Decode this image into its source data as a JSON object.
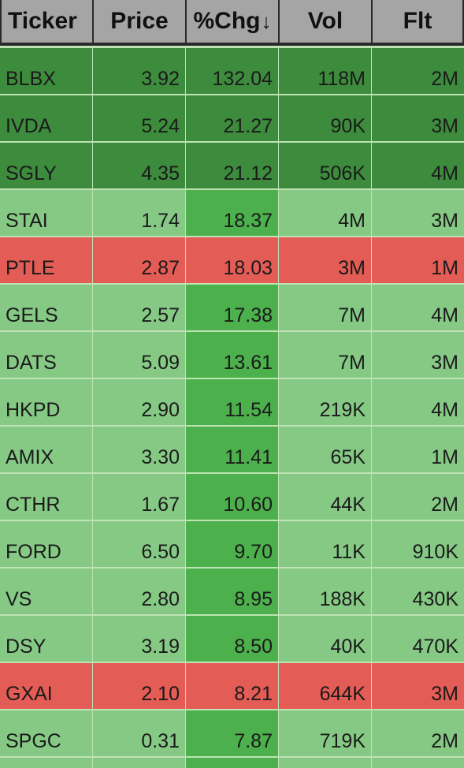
{
  "columns": [
    "Ticker",
    "Price",
    "%Chg",
    "Vol",
    "Flt"
  ],
  "sort_indicator": "↓",
  "colors": {
    "header_bg": "#a5a5a5",
    "dark_green": "#3d8b3d",
    "light_green": "#86c985",
    "mid_green": "#4cb04c",
    "red": "#e35c56",
    "separator": "#bfe3b4"
  },
  "rows": [
    {
      "ticker": "BLBX",
      "price": "3.92",
      "chg": "132.04",
      "vol": "118M",
      "flt": "2M",
      "style": "dark"
    },
    {
      "ticker": "IVDA",
      "price": "5.24",
      "chg": "21.27",
      "vol": "90K",
      "flt": "3M",
      "style": "dark"
    },
    {
      "ticker": "SGLY",
      "price": "4.35",
      "chg": "21.12",
      "vol": "506K",
      "flt": "4M",
      "style": "dark"
    },
    {
      "ticker": "STAI",
      "price": "1.74",
      "chg": "18.37",
      "vol": "4M",
      "flt": "3M",
      "style": "light"
    },
    {
      "ticker": "PTLE",
      "price": "2.87",
      "chg": "18.03",
      "vol": "3M",
      "flt": "1M",
      "style": "red"
    },
    {
      "ticker": "GELS",
      "price": "2.57",
      "chg": "17.38",
      "vol": "7M",
      "flt": "4M",
      "style": "light"
    },
    {
      "ticker": "DATS",
      "price": "5.09",
      "chg": "13.61",
      "vol": "7M",
      "flt": "3M",
      "style": "light"
    },
    {
      "ticker": "HKPD",
      "price": "2.90",
      "chg": "11.54",
      "vol": "219K",
      "flt": "4M",
      "style": "light"
    },
    {
      "ticker": "AMIX",
      "price": "3.30",
      "chg": "11.41",
      "vol": "65K",
      "flt": "1M",
      "style": "light"
    },
    {
      "ticker": "CTHR",
      "price": "1.67",
      "chg": "10.60",
      "vol": "44K",
      "flt": "2M",
      "style": "light"
    },
    {
      "ticker": "FORD",
      "price": "6.50",
      "chg": "9.70",
      "vol": "11K",
      "flt": "910K",
      "style": "light"
    },
    {
      "ticker": "VS",
      "price": "2.80",
      "chg": "8.95",
      "vol": "188K",
      "flt": "430K",
      "style": "light"
    },
    {
      "ticker": "DSY",
      "price": "3.19",
      "chg": "8.50",
      "vol": "40K",
      "flt": "470K",
      "style": "light"
    },
    {
      "ticker": "GXAI",
      "price": "2.10",
      "chg": "8.21",
      "vol": "644K",
      "flt": "3M",
      "style": "red"
    },
    {
      "ticker": "SPGC",
      "price": "0.31",
      "chg": "7.87",
      "vol": "719K",
      "flt": "2M",
      "style": "light"
    }
  ]
}
